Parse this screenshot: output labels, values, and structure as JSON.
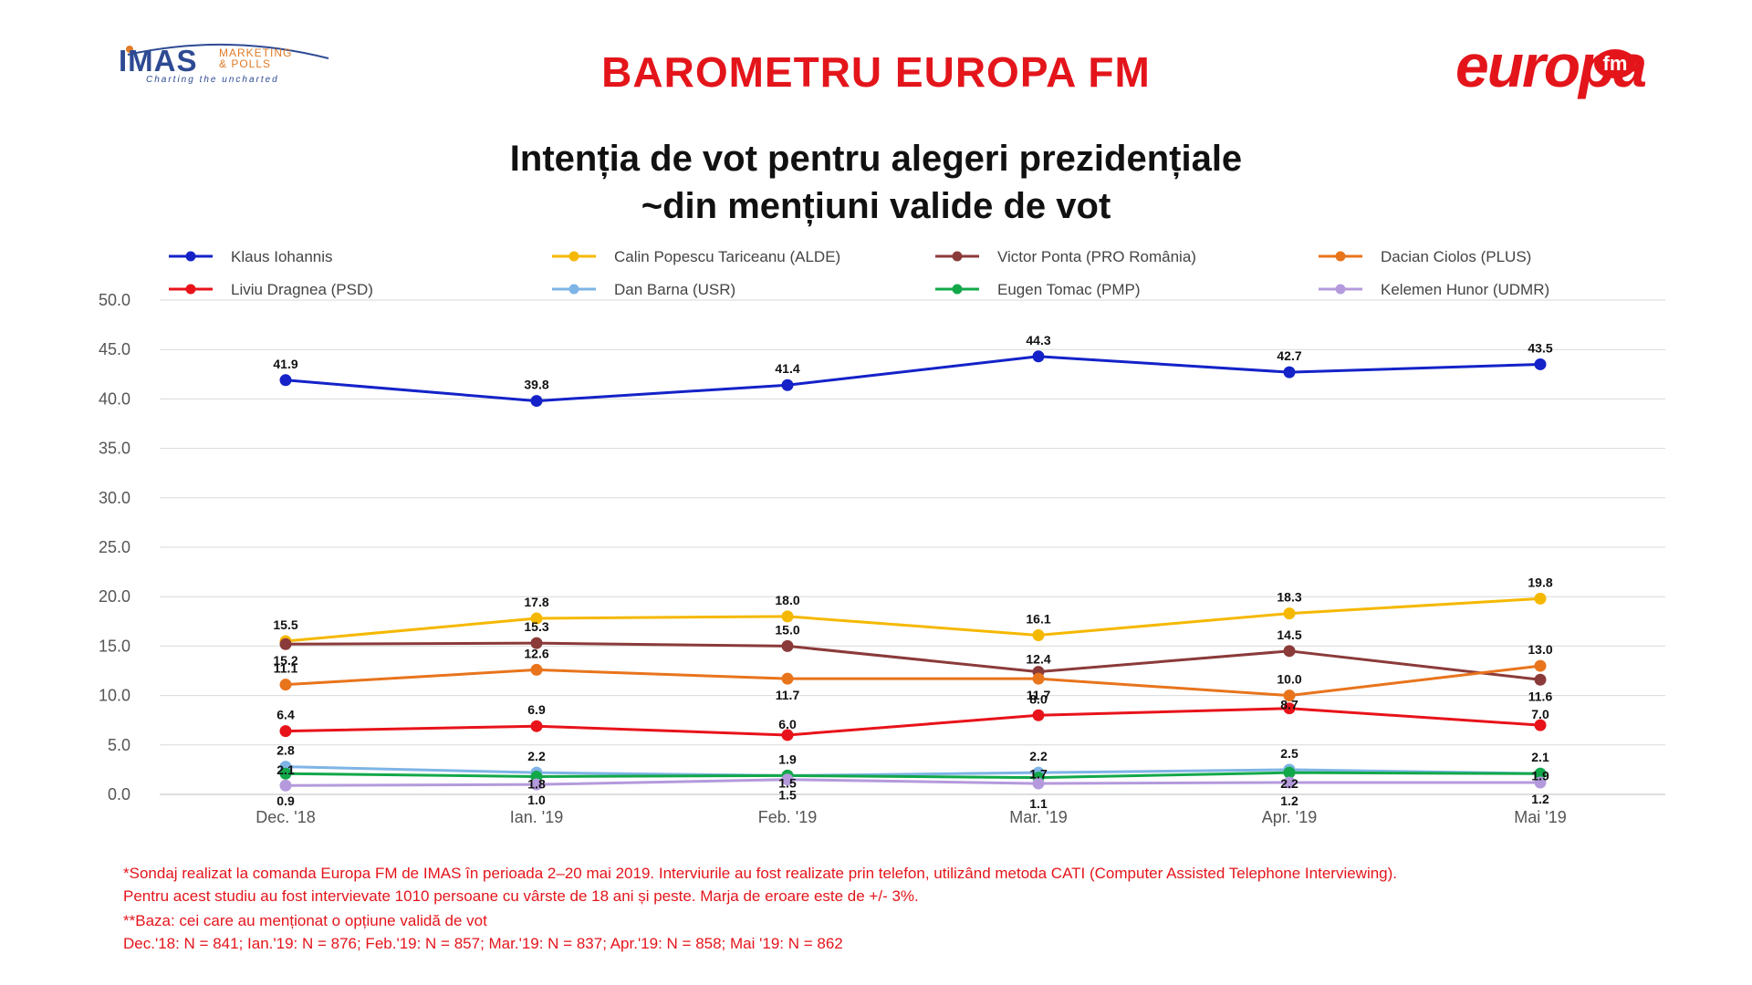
{
  "header": {
    "imas_logo": {
      "name": "IMAS",
      "line1": "MARKETING",
      "line2": "& POLLS",
      "tagline": "Charting the uncharted"
    },
    "brand_title": "BAROMETRU EUROPA FM",
    "europa_logo": {
      "word": "europa",
      "badge": "fm"
    }
  },
  "chart_data": {
    "type": "line",
    "title_line1": "Intenția de vot pentru alegeri prezidențiale",
    "title_line2": "~din mențiuni valide de vot",
    "categories": [
      "Dec. '18",
      "Ian. '19",
      "Feb. '19",
      "Mar. '19",
      "Apr. '19",
      "Mai '19"
    ],
    "ylim": [
      0,
      50
    ],
    "yticks": [
      "50.0",
      "45.0",
      "40.0",
      "35.0",
      "30.0",
      "25.0",
      "20.0",
      "15.0",
      "10.0",
      "5.0",
      "0.0"
    ],
    "grid": true,
    "legend_position": "top",
    "series": [
      {
        "name": "Klaus Iohannis",
        "color": "#1422c8",
        "values": [
          41.9,
          39.8,
          41.4,
          44.3,
          42.7,
          43.5
        ],
        "labels": [
          "41.9",
          "39.8",
          "41.4",
          "44.3",
          "42.7",
          "43.5"
        ]
      },
      {
        "name": "Calin Popescu Tariceanu (ALDE)",
        "color": "#f5b800",
        "values": [
          15.5,
          17.8,
          18.0,
          16.1,
          18.3,
          19.8
        ],
        "labels": [
          "15.5",
          "17.8",
          "18.0",
          "16.1",
          "18.3",
          "19.8"
        ]
      },
      {
        "name": "Victor Ponta (PRO România)",
        "color": "#8b3a3a",
        "values": [
          15.2,
          15.3,
          15.0,
          12.4,
          14.5,
          11.6
        ],
        "labels": [
          "15.2",
          "15.3",
          "15.0",
          "12.4",
          "14.5",
          "11.6"
        ]
      },
      {
        "name": "Dacian Ciolos (PLUS)",
        "color": "#e8741c",
        "values": [
          11.1,
          12.6,
          11.7,
          11.7,
          10.0,
          13.0
        ],
        "labels": [
          "11.1",
          "12.6",
          "11.7",
          "11.7",
          "10.0",
          "13.0"
        ]
      },
      {
        "name": "Liviu Dragnea (PSD)",
        "color": "#e8131a",
        "values": [
          6.4,
          6.9,
          6.0,
          8.0,
          8.7,
          7.0
        ],
        "labels": [
          "6.4",
          "6.9",
          "6.0",
          "8.0",
          "8.7",
          "7.0"
        ]
      },
      {
        "name": "Dan Barna (USR)",
        "color": "#7eb4e6",
        "values": [
          2.8,
          2.2,
          1.9,
          2.2,
          2.5,
          2.1
        ],
        "labels": [
          "2.8",
          "2.2",
          "1.9",
          "2.2",
          "2.5",
          "2.1"
        ]
      },
      {
        "name": "Eugen Tomac (PMP)",
        "color": "#12a84a",
        "values": [
          2.1,
          1.8,
          1.9,
          1.7,
          2.2,
          2.1
        ],
        "labels": [
          "2.1",
          "1.8",
          "",
          "1.7",
          "2.2",
          ""
        ]
      },
      {
        "name": "Kelemen Hunor (UDMR)",
        "color": "#b49adc",
        "values": [
          0.9,
          1.0,
          1.5,
          1.1,
          1.2,
          1.2
        ],
        "labels": [
          "0.9",
          "1.0",
          "1.5",
          "1.1",
          "1.2",
          "1.2"
        ]
      }
    ],
    "extra_labels": [
      "1.5",
      "1.9"
    ]
  },
  "footnotes": {
    "line1": "*Sondaj realizat la comanda Europa FM de IMAS în perioada 2–20 mai 2019. Interviurile au fost realizate prin telefon, utilizând metoda CATI (Computer Assisted Telephone Interviewing).",
    "line2": "Pentru acest studiu au fost intervievate 1010 persoane cu vârste de 18 ani și peste. Marja de eroare este de +/- 3%.",
    "line3": "**Baza: cei care au menționat o opțiune validă de vot",
    "line4": "Dec.'18: N = 841; Ian.'19: N = 876; Feb.'19: N = 857; Mar.'19: N = 837; Apr.'19: N = 858; Mai '19: N = 862"
  }
}
